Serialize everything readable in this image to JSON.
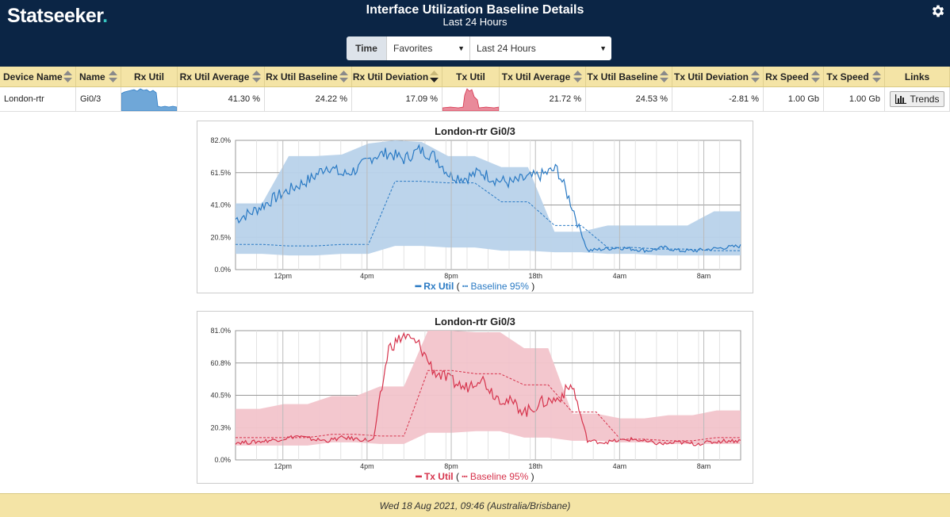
{
  "app": {
    "logo_text": "Statseeker",
    "logo_dot": "."
  },
  "page": {
    "title": "Interface Utilization Baseline Details",
    "subtitle": "Last 24 Hours"
  },
  "time_filter": {
    "label": "Time",
    "favorites": "Favorites",
    "range": "Last 24 Hours"
  },
  "table": {
    "headers": [
      "Device Name",
      "Name",
      "Rx Util",
      "Rx Util Average",
      "Rx Util Baseline",
      "Rx Util Deviation",
      "Tx Util",
      "Tx Util Average",
      "Tx Util Baseline",
      "Tx Util Deviation",
      "Rx Speed",
      "Tx Speed",
      "Links"
    ],
    "row": {
      "device_name": "London-rtr",
      "name": "Gi0/3",
      "rx_util_average": "41.30 %",
      "rx_util_baseline": "24.22 %",
      "rx_util_deviation": "17.09 %",
      "tx_util_average": "21.72 %",
      "tx_util_baseline": "24.53 %",
      "tx_util_deviation": "-2.81 %",
      "rx_speed": "1.00 Gb",
      "tx_speed": "1.00 Gb",
      "trends_label": "Trends"
    }
  },
  "colors": {
    "header_bg": "#0b2545",
    "rx": "#2a7ac4",
    "rx_band": "#b8d2ea",
    "tx": "#d6334c",
    "tx_band": "#f2c4cb",
    "table_header": "#f4e4a6"
  },
  "chart_data": [
    {
      "type": "area",
      "title": "London-rtr Gi0/3",
      "yticks": [
        "82.0%",
        "61.5%",
        "41.0%",
        "20.5%",
        "0.0%"
      ],
      "ylim": [
        0,
        82
      ],
      "xticks": [
        "12pm",
        "4pm",
        "8pm",
        "18th",
        "4am",
        "8am"
      ],
      "legend": {
        "main": "Rx Util",
        "paren_open": "(",
        "baseline": "Baseline 95%",
        "paren_close": ")"
      },
      "series": {
        "band_upper": [
          42,
          42,
          72,
          72,
          73,
          80,
          82,
          81,
          72,
          72,
          65,
          65,
          24,
          24,
          28,
          28,
          28,
          28,
          37,
          37
        ],
        "band_lower": [
          10,
          10,
          9,
          9,
          10,
          10,
          15,
          15,
          14,
          14,
          12,
          12,
          11,
          11,
          10,
          10,
          9,
          9,
          9,
          9
        ],
        "baseline": [
          16,
          16,
          15,
          15,
          16,
          16,
          56,
          56,
          55,
          55,
          43,
          43,
          28,
          28,
          14,
          14,
          13,
          13,
          12,
          12
        ],
        "util": [
          32,
          36,
          42,
          48,
          53,
          58,
          66,
          60,
          64,
          72,
          74,
          70,
          76,
          72,
          60,
          58,
          62,
          57,
          55,
          58,
          60,
          64,
          40,
          12,
          13,
          14,
          13,
          12,
          14,
          12,
          12,
          13,
          14,
          15
        ]
      }
    },
    {
      "type": "area",
      "title": "London-rtr Gi0/3",
      "yticks": [
        "81.0%",
        "60.8%",
        "40.5%",
        "20.3%",
        "0.0%"
      ],
      "ylim": [
        0,
        81
      ],
      "xticks": [
        "12pm",
        "4pm",
        "8pm",
        "18th",
        "4am",
        "8am"
      ],
      "legend": {
        "main": "Tx Util",
        "paren_open": "(",
        "baseline": "Baseline 95%",
        "paren_close": ")"
      },
      "series": {
        "band_upper": [
          32,
          32,
          35,
          35,
          40,
          40,
          46,
          46,
          81,
          81,
          80,
          80,
          70,
          70,
          29,
          29,
          26,
          26,
          28,
          28,
          31,
          31
        ],
        "band_lower": [
          9,
          9,
          9,
          9,
          11,
          11,
          10,
          10,
          17,
          17,
          18,
          18,
          14,
          14,
          12,
          12,
          11,
          11,
          10,
          10,
          10,
          10
        ],
        "baseline": [
          14,
          14,
          14,
          14,
          16,
          16,
          15,
          15,
          56,
          56,
          54,
          54,
          47,
          47,
          30,
          30,
          13,
          13,
          12,
          12,
          14,
          14
        ],
        "util": [
          11,
          11,
          12,
          13,
          15,
          13,
          12,
          14,
          13,
          12,
          70,
          78,
          72,
          55,
          50,
          45,
          52,
          40,
          36,
          30,
          36,
          38,
          47,
          12,
          11,
          12,
          13,
          11,
          10,
          11,
          10,
          11,
          12,
          12
        ]
      }
    }
  ],
  "footer": {
    "timestamp": "Wed 18 Aug 2021, 09:46 (Australia/Brisbane)"
  }
}
